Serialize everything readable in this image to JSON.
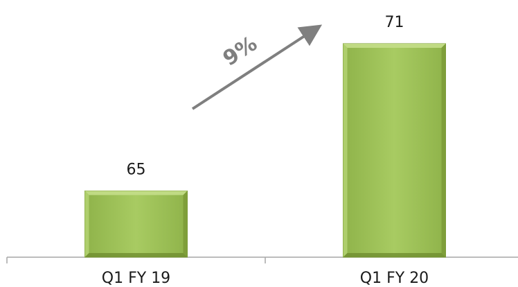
{
  "chart_data": {
    "type": "bar",
    "categories": [
      "Q1 FY 19",
      "Q1 FY 20"
    ],
    "values": [
      65,
      71
    ],
    "value_labels": [
      "65",
      "71"
    ],
    "growth_annotation": "9%",
    "title": "",
    "xlabel": "",
    "ylabel": "",
    "ylim": [
      62.3,
      72.1
    ],
    "grid": false,
    "legend": "none",
    "bar_color": "#a4c75e",
    "bar_edge_color": "#7e9e3a",
    "arrow_color": "#7f7f7f"
  }
}
